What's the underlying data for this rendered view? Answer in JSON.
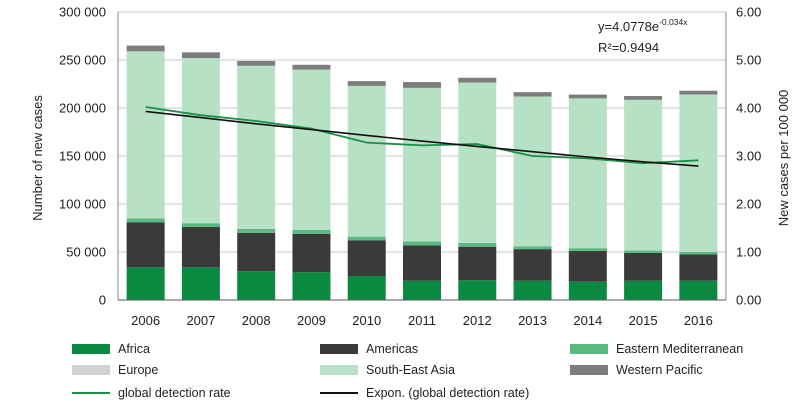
{
  "chart_data": {
    "type": "bar",
    "stacked": true,
    "categories": [
      "2006",
      "2007",
      "2008",
      "2009",
      "2010",
      "2011",
      "2012",
      "2013",
      "2014",
      "2015",
      "2016"
    ],
    "series": [
      {
        "name": "Africa",
        "color": "#0a8a40",
        "values": [
          34000,
          34000,
          30000,
          29000,
          25000,
          20000,
          20500,
          20000,
          19000,
          20000,
          20000
        ]
      },
      {
        "name": "Americas",
        "color": "#3a3a3a",
        "values": [
          47000,
          42000,
          40000,
          40000,
          37000,
          37000,
          35000,
          33000,
          32000,
          29000,
          27500
        ]
      },
      {
        "name": "Eastern Mediterranean",
        "color": "#5cb881",
        "values": [
          4000,
          4000,
          4000,
          4000,
          4000,
          4000,
          4000,
          3000,
          3000,
          2500,
          2500
        ]
      },
      {
        "name": "Europe",
        "color": "#cfd2d0",
        "values": [
          0,
          0,
          0,
          0,
          0,
          0,
          0,
          0,
          0,
          0,
          0
        ]
      },
      {
        "name": "South-East Asia",
        "color": "#b7e1c4",
        "values": [
          174000,
          172000,
          170000,
          167000,
          157000,
          160000,
          167000,
          156000,
          156000,
          157000,
          164000
        ]
      },
      {
        "name": "Western Pacific",
        "color": "#7d7d7d",
        "values": [
          6000,
          6000,
          5000,
          5000,
          5000,
          6000,
          5000,
          4500,
          4000,
          4000,
          4000
        ]
      }
    ],
    "lines": [
      {
        "name": "global detection rate",
        "color": "#1a8f47",
        "axis": "right",
        "values": [
          4.02,
          3.85,
          3.73,
          3.57,
          3.28,
          3.22,
          3.25,
          3.0,
          2.95,
          2.85,
          2.91
        ]
      },
      {
        "name": "Expon. (global detection rate)",
        "color": "#111111",
        "axis": "right",
        "values": [
          3.93,
          3.8,
          3.67,
          3.55,
          3.43,
          3.31,
          3.2,
          3.09,
          2.98,
          2.88,
          2.79
        ]
      }
    ],
    "ylabel": "Number of new cases",
    "ylim": [
      0,
      300000
    ],
    "yticks": [
      "0",
      "50 000",
      "100 000",
      "150 000",
      "200 000",
      "250 000",
      "300 000"
    ],
    "y2label": "New cases per 100 000",
    "y2lim": [
      0,
      6
    ],
    "y2ticks": [
      "0.00",
      "1.00",
      "2.00",
      "3.00",
      "4.00",
      "5.00",
      "6.00"
    ],
    "annotation": {
      "equation_prefix": "y=4.0778e",
      "equation_exponent": "-0.034x",
      "r_squared": "R²=0.9494"
    },
    "legend": {
      "placement": "bottom",
      "items": [
        {
          "label": "Africa",
          "kind": "box",
          "color": "#0a8a40"
        },
        {
          "label": "Americas",
          "kind": "box",
          "color": "#3a3a3a"
        },
        {
          "label": "Eastern Mediterranean",
          "kind": "box",
          "color": "#5cb881"
        },
        {
          "label": "Europe",
          "kind": "box",
          "color": "#cfd2d0"
        },
        {
          "label": "South-East Asia",
          "kind": "box",
          "color": "#b7e1c4"
        },
        {
          "label": "Western Pacific",
          "kind": "box",
          "color": "#7d7d7d"
        },
        {
          "label": "global detection rate",
          "kind": "line",
          "color": "#1a8f47"
        },
        {
          "label": "Expon. (global detection rate)",
          "kind": "line",
          "color": "#111111"
        }
      ]
    }
  }
}
